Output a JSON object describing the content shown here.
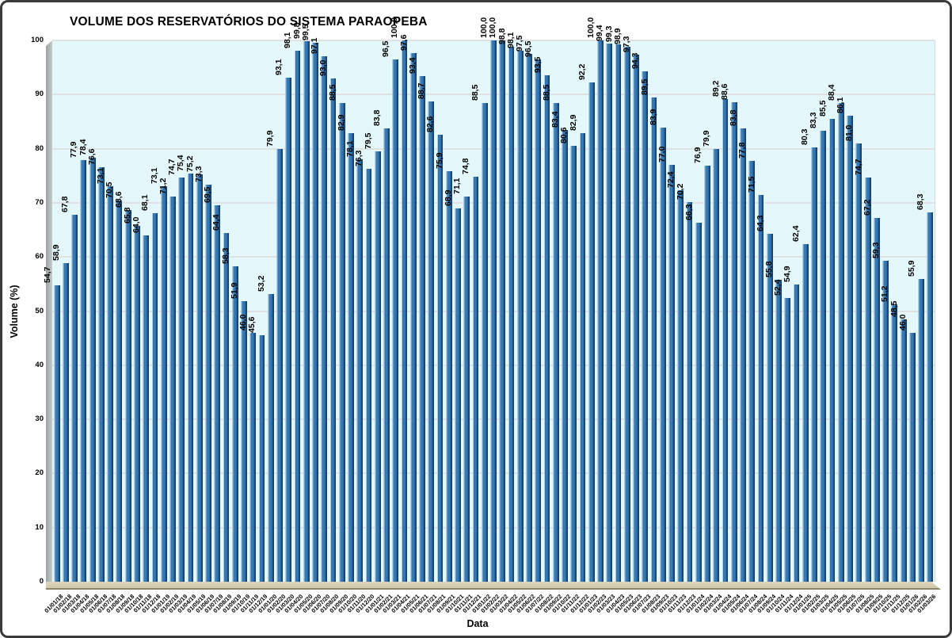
{
  "chart_data": {
    "type": "bar",
    "title": "VOLUME DOS RESERVATÓRIOS DO SISTEMA PARAOPEBA",
    "xlabel": "Data",
    "ylabel": "Volume (%)",
    "ylim": [
      0,
      100
    ],
    "ytick_step": 10,
    "grid": true,
    "legend": "none",
    "decimal_separator": ",",
    "value_labels_rotated_vertical": true,
    "x_labels_rotated_45deg": true,
    "plot_bg_color": "#e4f8fb",
    "gridline_color": "#dee2e2",
    "bar_gradient": [
      "#aacfe8",
      "#2d6ea9",
      "#3d7db8",
      "#2a659e",
      "#16426e"
    ],
    "wall_color": "#a8adad",
    "floor_color": "#d8d0b4",
    "categories": [
      "01/01/18",
      "01/02/18",
      "01/03/18",
      "01/04/18",
      "01/05/18",
      "01/06/18",
      "01/07/18",
      "01/08/18",
      "01/09/18",
      "01/10/18",
      "01/11/18",
      "01/12/18",
      "01/01/19",
      "01/02/19",
      "01/03/19",
      "01/04/19",
      "01/05/19",
      "01/06/19",
      "01/07/19",
      "01/08/19",
      "01/09/19",
      "01/10/19",
      "01/11/19",
      "01/12/19",
      "01/01/20",
      "01/02/20",
      "01/03/20",
      "01/04/20",
      "01/05/20",
      "01/06/20",
      "01/07/20",
      "01/08/20",
      "01/09/20",
      "01/10/20",
      "01/11/20",
      "01/12/20",
      "01/01/21",
      "01/02/21",
      "01/03/21",
      "01/04/21",
      "01/05/21",
      "01/06/21",
      "01/07/21",
      "01/08/21",
      "01/09/21",
      "01/10/21",
      "01/11/21",
      "01/12/21",
      "01/01/22",
      "01/02/22",
      "01/03/22",
      "01/04/22",
      "01/05/22",
      "01/06/22",
      "01/07/22",
      "01/08/22",
      "01/09/22",
      "01/10/22",
      "01/11/22",
      "01/12/22",
      "01/01/23",
      "01/02/23",
      "01/03/23",
      "01/04/23",
      "01/05/23",
      "01/06/23",
      "01/07/23",
      "01/08/23",
      "01/09/23",
      "01/10/23",
      "01/11/23",
      "01/12/23",
      "01/01/24",
      "01/02/24",
      "01/03/24",
      "01/04/24",
      "01/05/24",
      "01/06/24",
      "01/07/24",
      "01/08/24",
      "01/09/24",
      "01/10/24",
      "01/11/24",
      "01/12/24",
      "01/01/25",
      "01/02/25",
      "01/03/25",
      "01/04/25",
      "01/05/25",
      "01/06/25",
      "01/07/25",
      "01/08/25",
      "01/09/25",
      "01/10/25",
      "01/11/25",
      "01/12/25",
      "01/01/26",
      "01/02/26",
      "01/03/26"
    ],
    "values": [
      54.7,
      58.9,
      67.8,
      77.9,
      78.4,
      76.6,
      73.1,
      70.5,
      68.6,
      65.8,
      64.0,
      68.1,
      73.1,
      71.2,
      74.7,
      75.4,
      75.2,
      73.3,
      69.5,
      64.4,
      58.3,
      51.9,
      46.0,
      45.6,
      53.2,
      79.9,
      93.1,
      98.1,
      99.8,
      99.5,
      97.1,
      93.0,
      88.5,
      82.9,
      78.1,
      76.3,
      79.5,
      83.8,
      96.5,
      100.0,
      97.6,
      93.4,
      88.7,
      82.6,
      75.9,
      68.9,
      71.1,
      74.8,
      88.5,
      100.0,
      100.0,
      98.8,
      98.1,
      97.5,
      96.5,
      93.5,
      88.5,
      83.4,
      80.6,
      82.9,
      92.2,
      100.0,
      99.4,
      99.3,
      98.9,
      97.3,
      94.3,
      89.5,
      83.9,
      77.0,
      72.4,
      70.2,
      66.3,
      76.9,
      79.9,
      89.2,
      88.6,
      83.8,
      77.8,
      71.5,
      64.3,
      55.8,
      52.4,
      54.9,
      62.4,
      80.3,
      83.3,
      85.5,
      88.4,
      86.1,
      81.0,
      74.7,
      67.2,
      59.3,
      51.2,
      48.5,
      46.0,
      55.9,
      68.3
    ]
  }
}
